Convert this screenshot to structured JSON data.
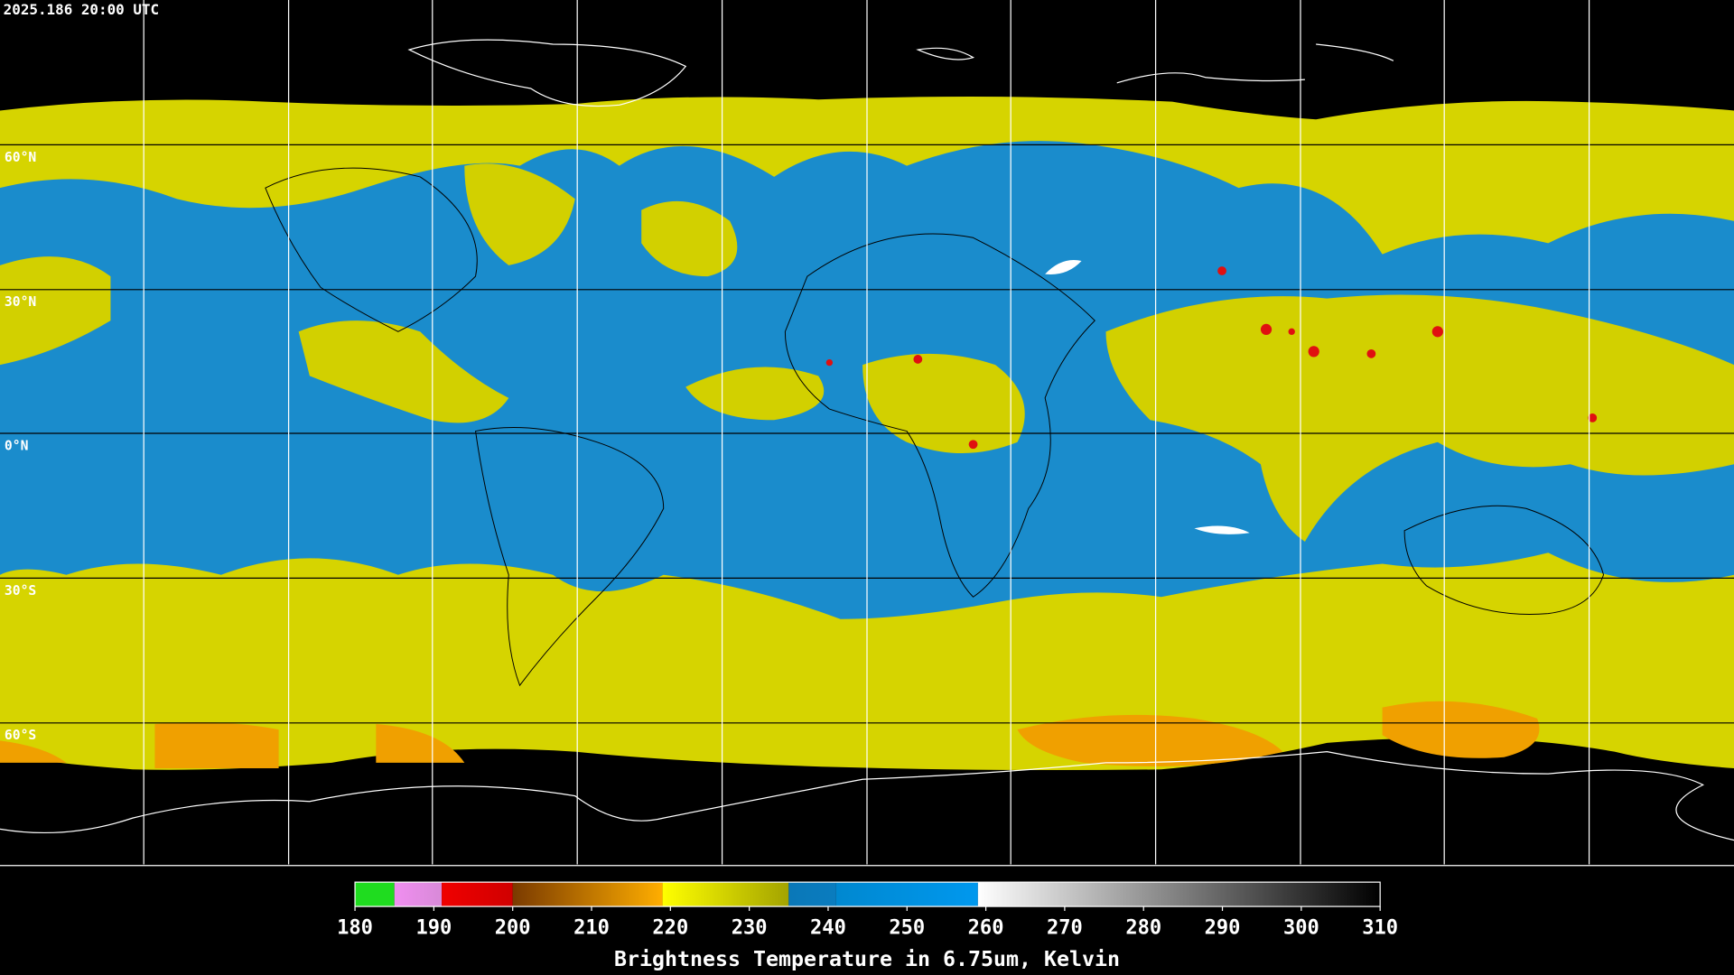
{
  "map": {
    "timestamp": "2025.186 20:00 UTC",
    "lat_labels": [
      "60°N",
      "30°N",
      "0°N",
      "30°S",
      "60°S"
    ]
  },
  "colorbar": {
    "range": [
      180,
      310
    ],
    "ticks": [
      180,
      190,
      200,
      210,
      220,
      230,
      240,
      250,
      260,
      270,
      280,
      290,
      300,
      310
    ],
    "label": "Brightness Temperature in 6.75um, Kelvin",
    "segments": [
      {
        "from": 180,
        "to": 185,
        "colors": [
          "#1fdc1f",
          "#1fdc1f"
        ]
      },
      {
        "from": 185,
        "to": 191,
        "colors": [
          "#f08ef0",
          "#d88ad8"
        ]
      },
      {
        "from": 191,
        "to": 200,
        "colors": [
          "#f00000",
          "#d00000"
        ]
      },
      {
        "from": 200,
        "to": 219,
        "colors": [
          "#7a3a00",
          "#ffae00"
        ]
      },
      {
        "from": 219,
        "to": 235,
        "colors": [
          "#ffff00",
          "#a3a300"
        ]
      },
      {
        "from": 235,
        "to": 241,
        "colors": [
          "#0a78b8",
          "#0a7cbf"
        ]
      },
      {
        "from": 241,
        "to": 259,
        "colors": [
          "#0088d0",
          "#0098ee"
        ]
      },
      {
        "from": 259,
        "to": 310,
        "colors": [
          "#ffffff",
          "#000000"
        ]
      }
    ]
  }
}
